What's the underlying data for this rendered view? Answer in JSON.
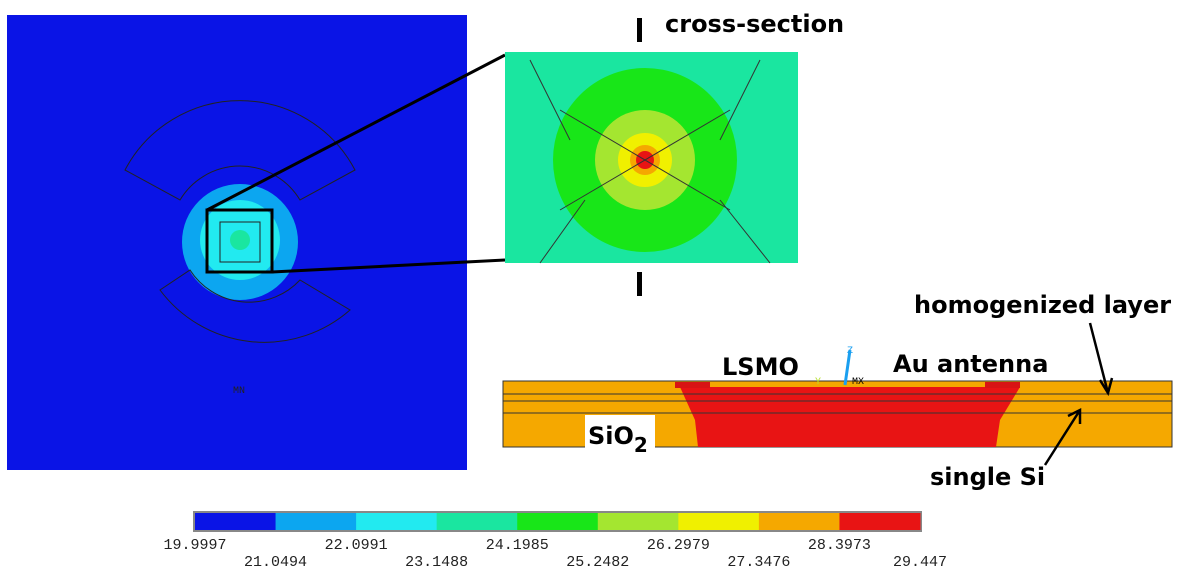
{
  "plan": {
    "label": "MN"
  },
  "zoom": {
    "label": "cross-section"
  },
  "cross_section": {
    "lsmo": "LSMO",
    "antenna": "Au antenna",
    "layer": "homogenized layer",
    "oxide": "SiO",
    "oxide_sub": "2",
    "substrate": "single Si",
    "axis_y": "Y",
    "axis_z": "Z",
    "axis_mx": "MX"
  },
  "colorbar": {
    "colors": [
      "#0a14e6",
      "#0ca6f0",
      "#22eaf0",
      "#1ae6a0",
      "#18e618",
      "#a4e630",
      "#f0f000",
      "#f5a800",
      "#e81414"
    ],
    "ticks": [
      19.9997,
      21.0494,
      22.0991,
      23.1488,
      24.1985,
      25.2482,
      26.2979,
      27.3476,
      28.3973,
      29.447
    ]
  }
}
